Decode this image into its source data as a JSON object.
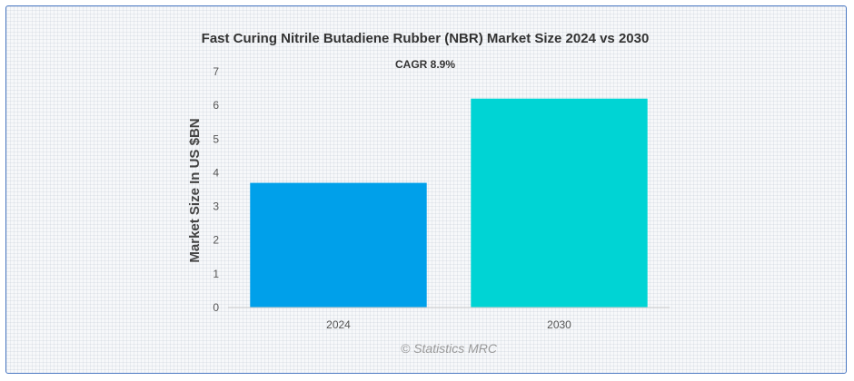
{
  "chart_data": {
    "type": "bar",
    "title": "Fast Curing Nitrile Butadiene Rubber (NBR) Market Size 2024 vs 2030",
    "subtitle": "CAGR 8.9%",
    "ylabel": "Market Size In US $BN",
    "xlabel": "",
    "categories": [
      "2024",
      "2030"
    ],
    "values": [
      3.7,
      6.2
    ],
    "colors": [
      "#00a0ea",
      "#00d4d4"
    ],
    "ylim": [
      0,
      7
    ],
    "yticks": [
      0,
      1,
      2,
      3,
      4,
      5,
      6,
      7
    ],
    "grid": false,
    "legend": "none"
  },
  "credit": "© Statistics MRC"
}
